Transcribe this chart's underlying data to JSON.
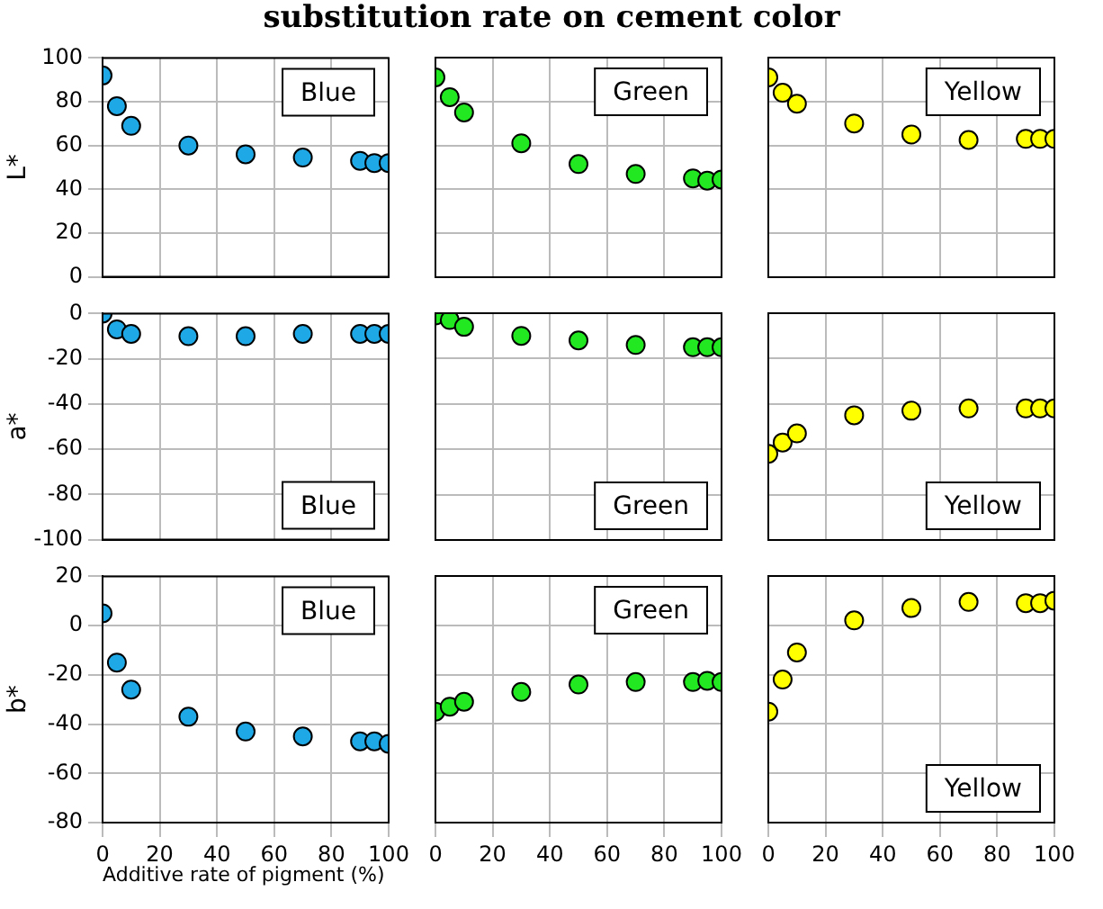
{
  "chart_data": [
    {
      "type": "scatter",
      "title": "substitution rate on cement color",
      "ylabel": "L*",
      "annotations": [
        "Blue"
      ],
      "x": [
        0,
        5,
        10,
        30,
        50,
        70,
        90,
        95,
        100
      ],
      "xlim": [
        0,
        100
      ],
      "xticks": [
        0,
        20,
        40,
        60,
        80,
        100
      ],
      "ylim": [
        0,
        100
      ],
      "yticks": [
        0,
        20,
        40,
        60,
        80,
        100
      ],
      "grid": true,
      "marker": "circle",
      "tick_labels": "y",
      "series": [
        {
          "color": "#1ea8e6",
          "values": [
            92,
            78,
            69,
            60,
            56,
            54.5,
            53,
            52,
            52
          ]
        }
      ]
    },
    {
      "type": "scatter",
      "annotations": [
        "Green"
      ],
      "x": [
        0,
        5,
        10,
        30,
        50,
        70,
        90,
        95,
        100
      ],
      "xlim": [
        0,
        100
      ],
      "xticks": [
        0,
        20,
        40,
        60,
        80,
        100
      ],
      "ylim": [
        0,
        100
      ],
      "yticks": [
        0,
        20,
        40,
        60,
        80,
        100
      ],
      "grid": true,
      "marker": "circle",
      "tick_labels": false,
      "series": [
        {
          "color": "#22e822",
          "values": [
            91,
            82,
            75,
            61,
            51.5,
            47,
            45,
            44,
            44.5
          ]
        }
      ]
    },
    {
      "type": "scatter",
      "annotations": [
        "Yellow"
      ],
      "x": [
        0,
        5,
        10,
        30,
        50,
        70,
        90,
        95,
        100
      ],
      "xlim": [
        0,
        100
      ],
      "xticks": [
        0,
        20,
        40,
        60,
        80,
        100
      ],
      "ylim": [
        0,
        100
      ],
      "yticks": [
        0,
        20,
        40,
        60,
        80,
        100
      ],
      "grid": true,
      "marker": "circle",
      "tick_labels": false,
      "series": [
        {
          "color": "#ffff00",
          "values": [
            91,
            84,
            79,
            70,
            65,
            62.5,
            63,
            63,
            63
          ]
        }
      ]
    },
    {
      "type": "scatter",
      "ylabel": "a*",
      "annotations": [
        "Blue"
      ],
      "x": [
        0,
        5,
        10,
        30,
        50,
        70,
        90,
        95,
        100
      ],
      "xlim": [
        0,
        100
      ],
      "xticks": [
        0,
        20,
        40,
        60,
        80,
        100
      ],
      "ylim": [
        -100,
        0
      ],
      "yticks": [
        -100,
        -80,
        -60,
        -40,
        -20,
        0
      ],
      "grid": true,
      "marker": "circle",
      "tick_labels": "y",
      "series": [
        {
          "color": "#1ea8e6",
          "values": [
            0,
            -7,
            -9,
            -10,
            -10,
            -9,
            -9,
            -9,
            -9
          ]
        }
      ]
    },
    {
      "type": "scatter",
      "annotations": [
        "Green"
      ],
      "x": [
        0,
        5,
        10,
        30,
        50,
        70,
        90,
        95,
        100
      ],
      "xlim": [
        0,
        100
      ],
      "xticks": [
        0,
        20,
        40,
        60,
        80,
        100
      ],
      "ylim": [
        -100,
        0
      ],
      "yticks": [
        -100,
        -80,
        -60,
        -40,
        -20,
        0
      ],
      "grid": true,
      "marker": "circle",
      "tick_labels": false,
      "series": [
        {
          "color": "#22e822",
          "values": [
            -1,
            -3,
            -6,
            -10,
            -12,
            -14,
            -15,
            -15,
            -15
          ]
        }
      ]
    },
    {
      "type": "scatter",
      "annotations": [
        "Yellow"
      ],
      "x": [
        0,
        5,
        10,
        30,
        50,
        70,
        90,
        95,
        100
      ],
      "xlim": [
        0,
        100
      ],
      "xticks": [
        0,
        20,
        40,
        60,
        80,
        100
      ],
      "ylim": [
        -100,
        0
      ],
      "yticks": [
        -100,
        -80,
        -60,
        -40,
        -20,
        0
      ],
      "grid": true,
      "marker": "circle",
      "tick_labels": false,
      "series": [
        {
          "color": "#ffff00",
          "values": [
            -62,
            -57,
            -53,
            -45,
            -43,
            -42,
            -42,
            -42,
            -42
          ]
        }
      ]
    },
    {
      "type": "scatter",
      "ylabel": "b*",
      "xlabel": "Additive rate of pigment (%)",
      "annotations": [
        "Blue"
      ],
      "x": [
        0,
        5,
        10,
        30,
        50,
        70,
        90,
        95,
        100
      ],
      "xlim": [
        0,
        100
      ],
      "xticks": [
        0,
        20,
        40,
        60,
        80,
        100
      ],
      "ylim": [
        -80,
        20
      ],
      "yticks": [
        -80,
        -60,
        -40,
        -20,
        0,
        20
      ],
      "grid": true,
      "marker": "circle",
      "series": [
        {
          "color": "#1ea8e6",
          "values": [
            5,
            -15,
            -26,
            -37,
            -43,
            -45,
            -47,
            -47,
            -48
          ]
        }
      ]
    },
    {
      "type": "scatter",
      "annotations": [
        "Green"
      ],
      "x": [
        0,
        5,
        10,
        30,
        50,
        70,
        90,
        95,
        100
      ],
      "xlim": [
        0,
        100
      ],
      "xticks": [
        0,
        20,
        40,
        60,
        80,
        100
      ],
      "ylim": [
        -80,
        20
      ],
      "yticks": [
        -80,
        -60,
        -40,
        -20,
        0,
        20
      ],
      "grid": true,
      "marker": "circle",
      "tick_labels": "x",
      "series": [
        {
          "color": "#22e822",
          "values": [
            -35,
            -33,
            -31,
            -27,
            -24,
            -23,
            -23,
            -22.5,
            -23
          ]
        }
      ]
    },
    {
      "type": "scatter",
      "annotations": [
        "Yellow"
      ],
      "x": [
        0,
        5,
        10,
        30,
        50,
        70,
        90,
        95,
        100
      ],
      "xlim": [
        0,
        100
      ],
      "xticks": [
        0,
        20,
        40,
        60,
        80,
        100
      ],
      "ylim": [
        -80,
        20
      ],
      "yticks": [
        -80,
        -60,
        -40,
        -20,
        0,
        20
      ],
      "grid": true,
      "marker": "circle",
      "tick_labels": "x",
      "series": [
        {
          "color": "#ffff00",
          "values": [
            -35,
            -22,
            -11,
            2,
            7,
            9.5,
            9,
            9,
            10
          ]
        }
      ]
    }
  ]
}
